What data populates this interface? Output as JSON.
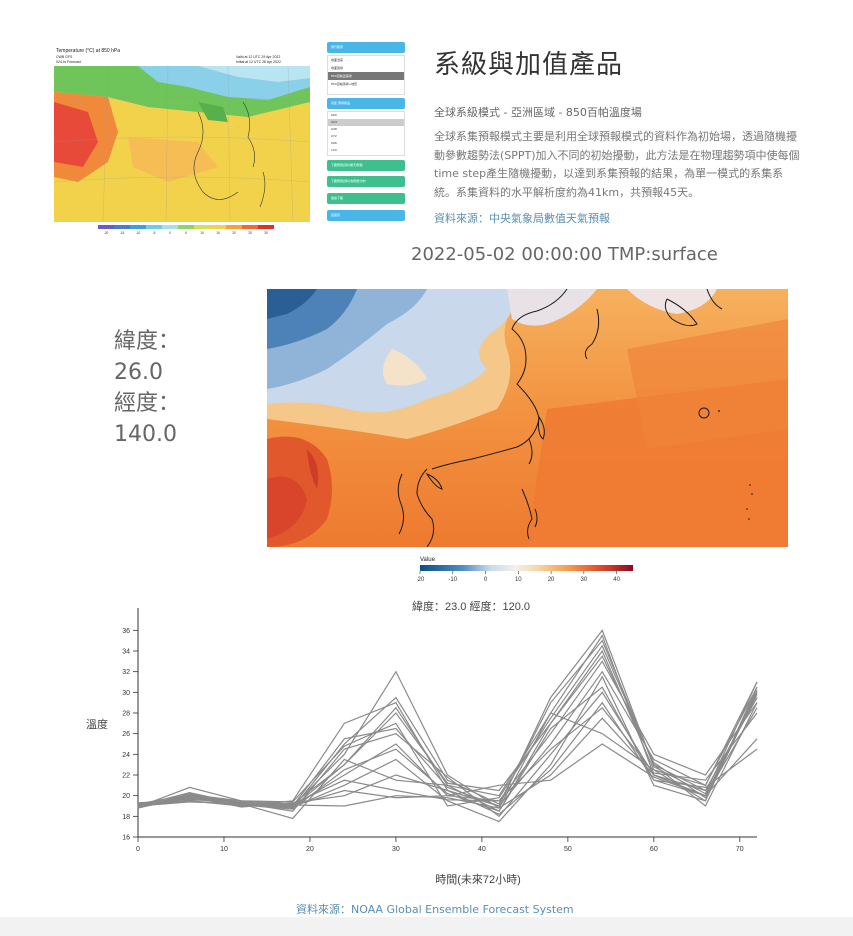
{
  "header": {
    "title": "系級與加值產品",
    "subtitle": "全球系級模式 - 亞洲區域 - 850百帕溫度場",
    "description": "全球系集預報模式主要是利用全球預報模式的資料作為初始場，透過隨機擾動參數趨勢法(SPPT)加入不同的初始擾動，此方法是在物理趨勢項中使每個time step產生隨機擾動，以達到系集預報的結果，為單一模式的系集系統。系集資料的水平解析度約為41km，共預報45天。",
    "source": "資料來源：中央氣象局數值天氣預報"
  },
  "preview": {
    "title": "Temperature (°C) at 850 hPa",
    "sub1": "CWB GFS",
    "sub2": "024-hr Forecast",
    "valid": "Valid at 12 UTC 29 Apr 2022",
    "initial": "Initial at 12 UTC 28 Apr 2022",
    "scale_ticks": [
      "-20",
      "-15",
      "-10",
      "-5",
      "0",
      "5",
      "10",
      "15",
      "20",
      "25",
      "30"
    ],
    "panel_header1": "預行都東",
    "panel_header2": "系集",
    "panel_header2b": "預報產品",
    "panel_items1": [
      "地面溫度",
      "地面風場",
      "850百帕溫度場",
      "850百帕風場+地形"
    ],
    "panel_items2": [
      "000",
      "024",
      "048",
      "072",
      "096",
      "120"
    ],
    "panel_btn1": "下載預報資料(無天雨量)",
    "panel_btn2": "下載預報資料(含雨量分布)",
    "panel_btn3": "播放下載",
    "panel_btn4": "回首頁"
  },
  "map": {
    "title": "2022-05-02 00:00:00 TMP:surface",
    "lat_label": "緯度：",
    "lat_value": "26.0",
    "lon_label": "經度：",
    "lon_value": "140.0"
  },
  "colorbar": {
    "label": "Value",
    "ticks": [
      "-20",
      "-10",
      "0",
      "10",
      "20",
      "30",
      "40"
    ]
  },
  "chart_data": {
    "type": "line",
    "title": "緯度：23.0 經度：120.0",
    "xlabel": "時間(未來72小時)",
    "ylabel": "溫度",
    "xlim": [
      0,
      72
    ],
    "ylim": [
      16,
      37
    ],
    "xticks": [
      0,
      10,
      20,
      30,
      40,
      50,
      60,
      70
    ],
    "yticks": [
      16,
      18,
      20,
      22,
      24,
      26,
      28,
      30,
      32,
      34,
      36
    ],
    "x": [
      0,
      6,
      12,
      18,
      24,
      30,
      36,
      42,
      48,
      54,
      60,
      66,
      72
    ],
    "series": [
      {
        "values": [
          19.0,
          20.0,
          19.4,
          19.0,
          24.0,
          32.0,
          22.0,
          18.8,
          28.0,
          35.5,
          22.0,
          20.0,
          30.0
        ]
      },
      {
        "values": [
          19.1,
          19.8,
          19.2,
          18.8,
          25.0,
          29.5,
          21.5,
          19.2,
          29.0,
          35.0,
          23.0,
          20.5,
          29.5
        ]
      },
      {
        "values": [
          18.9,
          20.8,
          19.5,
          19.2,
          23.0,
          28.5,
          21.0,
          18.5,
          27.0,
          34.0,
          22.5,
          19.5,
          30.5
        ]
      },
      {
        "values": [
          19.2,
          19.5,
          19.0,
          19.5,
          27.0,
          29.0,
          20.5,
          19.0,
          25.0,
          32.0,
          23.5,
          21.0,
          31.0
        ]
      },
      {
        "values": [
          19.0,
          19.7,
          19.3,
          18.5,
          24.5,
          26.0,
          21.8,
          18.0,
          24.0,
          30.0,
          22.0,
          20.0,
          28.5
        ]
      },
      {
        "values": [
          18.8,
          20.2,
          19.1,
          19.0,
          22.0,
          25.0,
          20.0,
          19.5,
          26.0,
          33.0,
          24.0,
          22.0,
          29.0
        ]
      },
      {
        "values": [
          19.3,
          19.6,
          19.4,
          18.9,
          21.0,
          23.5,
          19.5,
          17.5,
          23.0,
          31.5,
          21.0,
          19.5,
          30.0
        ]
      },
      {
        "values": [
          19.0,
          20.0,
          18.9,
          19.3,
          20.0,
          22.0,
          20.5,
          18.2,
          22.5,
          29.0,
          21.5,
          20.0,
          25.5
        ]
      },
      {
        "values": [
          19.1,
          19.9,
          19.3,
          19.1,
          19.0,
          20.0,
          19.8,
          18.8,
          22.0,
          27.5,
          22.0,
          20.5,
          29.5
        ]
      },
      {
        "values": [
          19.0,
          19.4,
          19.2,
          17.8,
          23.5,
          21.5,
          21.0,
          20.0,
          28.0,
          26.0,
          22.5,
          21.0,
          30.5
        ]
      },
      {
        "values": [
          18.9,
          19.8,
          19.0,
          19.0,
          25.5,
          26.5,
          20.8,
          19.0,
          29.5,
          36.0,
          22.8,
          20.2,
          31.0
        ]
      },
      {
        "values": [
          19.2,
          20.1,
          19.5,
          19.4,
          24.8,
          27.0,
          19.0,
          19.8,
          27.5,
          34.5,
          23.0,
          19.0,
          29.0
        ]
      },
      {
        "values": [
          19.0,
          19.5,
          19.1,
          18.7,
          22.5,
          24.5,
          20.2,
          18.5,
          26.5,
          30.5,
          21.5,
          20.8,
          24.5
        ]
      },
      {
        "values": [
          19.1,
          19.7,
          19.3,
          19.2,
          21.5,
          20.5,
          19.6,
          19.5,
          24.5,
          28.5,
          22.2,
          21.5,
          28.0
        ]
      },
      {
        "values": [
          18.8,
          19.9,
          19.4,
          19.0,
          20.5,
          19.8,
          20.0,
          21.0,
          21.5,
          25.0,
          21.8,
          20.0,
          29.8
        ]
      },
      {
        "values": [
          19.0,
          20.3,
          19.2,
          18.9,
          23.0,
          28.0,
          21.2,
          20.5,
          27.0,
          33.5,
          23.2,
          19.8,
          30.2
        ]
      }
    ]
  },
  "footer": {
    "source": "資料來源：NOAA Global Ensemble Forecast System"
  },
  "colors": {
    "series": "#8a8a8a",
    "link": "#5a8fb0",
    "panel_blue": "#4ab6e8",
    "panel_green": "#3fbf8e"
  }
}
